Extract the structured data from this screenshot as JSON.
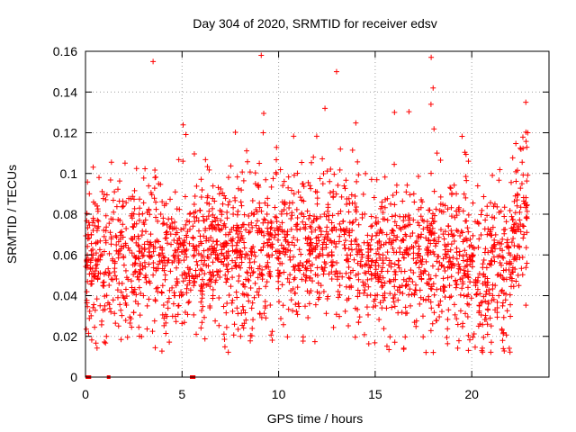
{
  "chart_data": {
    "type": "scatter",
    "title": "Day 304 of 2020, SRMTID for receiver edsv",
    "xlabel": "GPS time / hours",
    "ylabel": "SRMTID / TECUs",
    "xlim": [
      0,
      24
    ],
    "ylim": [
      0,
      0.16
    ],
    "xticks": [
      0,
      5,
      10,
      15,
      20
    ],
    "yticks": [
      0,
      0.02,
      0.04,
      0.06,
      0.08,
      0.1,
      0.12,
      0.14,
      0.16
    ],
    "xtick_labels": [
      "0",
      "5",
      "10",
      "15",
      "20"
    ],
    "ytick_labels": [
      "0",
      "0.02",
      "0.04",
      "0.06",
      "0.08",
      "0.1",
      "0.12",
      "0.14",
      "0.16"
    ],
    "grid": true,
    "marker": "+",
    "series": [
      {
        "name": "SRMTID",
        "color": "#ff0000",
        "marker": "+",
        "x": [
          0.1,
          0.2,
          0.3,
          0.4,
          0.5,
          0.6,
          0.7,
          0.8,
          0.9,
          1.0,
          1.2,
          1.4,
          1.6,
          1.8,
          2.0,
          2.2,
          2.4,
          2.6,
          2.8,
          3.0,
          3.2,
          3.4,
          3.5,
          3.6,
          3.8,
          4.0,
          4.2,
          4.4,
          4.6,
          4.8,
          5.0,
          5.2,
          5.4,
          5.6,
          5.8,
          6.0,
          6.2,
          6.4,
          6.6,
          6.8,
          7.0,
          7.2,
          7.4,
          7.6,
          7.8,
          8.0,
          8.2,
          8.4,
          8.6,
          8.8,
          9.0,
          9.1,
          9.2,
          9.4,
          9.6,
          9.8,
          10.0,
          10.2,
          10.4,
          10.6,
          10.8,
          11.0,
          11.2,
          11.4,
          11.6,
          11.8,
          12.0,
          12.2,
          12.4,
          12.6,
          12.8,
          13.0,
          13.2,
          13.4,
          13.6,
          13.8,
          14.0,
          14.2,
          14.4,
          14.6,
          14.8,
          15.0,
          15.2,
          15.4,
          15.6,
          15.8,
          16.0,
          16.2,
          16.4,
          16.6,
          16.8,
          17.0,
          17.2,
          17.4,
          17.6,
          17.8,
          17.9,
          18.0,
          18.2,
          18.4,
          18.6,
          18.8,
          19.0,
          19.2,
          19.4,
          19.6,
          19.8,
          20.0,
          20.2,
          20.4,
          20.6,
          20.8,
          21.0,
          21.2,
          21.4,
          21.6,
          21.8,
          22.0,
          22.2,
          22.4,
          22.6,
          22.8,
          22.9
        ],
        "y": [
          0.055,
          0.09,
          0.062,
          0.078,
          0.085,
          0.072,
          0.098,
          0.06,
          0.045,
          0.035,
          0.05,
          0.058,
          0.062,
          0.071,
          0.055,
          0.048,
          0.044,
          0.052,
          0.083,
          0.04,
          0.035,
          0.065,
          0.155,
          0.098,
          0.06,
          0.045,
          0.07,
          0.052,
          0.04,
          0.035,
          0.05,
          0.062,
          0.08,
          0.045,
          0.055,
          0.06,
          0.072,
          0.085,
          0.04,
          0.052,
          0.065,
          0.058,
          0.07,
          0.049,
          0.055,
          0.062,
          0.075,
          0.048,
          0.06,
          0.095,
          0.105,
          0.158,
          0.12,
          0.08,
          0.065,
          0.072,
          0.058,
          0.086,
          0.07,
          0.062,
          0.09,
          0.055,
          0.048,
          0.075,
          0.062,
          0.108,
          0.085,
          0.07,
          0.132,
          0.06,
          0.055,
          0.15,
          0.112,
          0.065,
          0.058,
          0.072,
          0.05,
          0.062,
          0.045,
          0.066,
          0.055,
          0.04,
          0.048,
          0.06,
          0.07,
          0.085,
          0.13,
          0.055,
          0.045,
          0.062,
          0.075,
          0.09,
          0.06,
          0.048,
          0.052,
          0.072,
          0.157,
          0.142,
          0.11,
          0.085,
          0.065,
          0.07,
          0.055,
          0.09,
          0.048,
          0.04,
          0.052,
          0.06,
          0.045,
          0.035,
          0.05,
          0.07,
          0.062,
          0.085,
          0.04,
          0.035,
          0.048,
          0.06,
          0.075,
          0.05,
          0.095,
          0.135,
          0.12
        ],
        "zero_x": [
          0.1,
          0.15,
          0.2,
          1.2,
          5.5,
          5.6
        ]
      }
    ]
  }
}
